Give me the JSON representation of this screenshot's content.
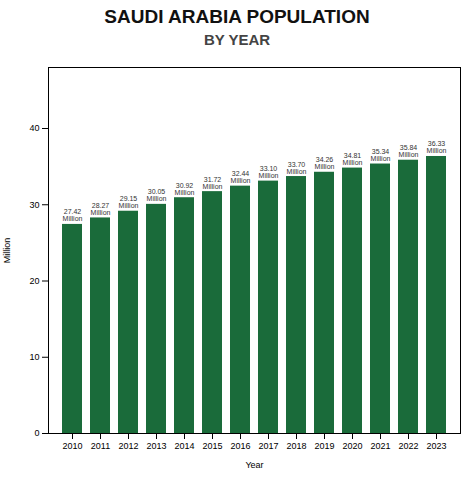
{
  "chart_data": {
    "type": "bar",
    "title": "SAUDI ARABIA POPULATION",
    "subtitle": "BY YEAR",
    "categories": [
      "2010",
      "2011",
      "2012",
      "2013",
      "2014",
      "2015",
      "2016",
      "2017",
      "2018",
      "2019",
      "2020",
      "2021",
      "2022",
      "2023"
    ],
    "values": [
      27.42,
      28.27,
      29.15,
      30.05,
      30.92,
      31.72,
      32.44,
      33.1,
      33.7,
      34.26,
      34.81,
      35.34,
      35.84,
      36.33
    ],
    "value_labels": [
      "27.42\nMillion",
      "28.27\nMillion",
      "29.15\nMillion",
      "30.05\nMillion",
      "30.92\nMillion",
      "31.72\nMillion",
      "32.44\nMillion",
      "33.10\nMillion",
      "33.70\nMillion",
      "34.26\nMillion",
      "34.81\nMillion",
      "35.34\nMillion",
      "35.84\nMillion",
      "36.33\nMillion"
    ],
    "data_labels": true,
    "color": "#1a6b3a",
    "xlabel": "Year",
    "ylabel": "Million",
    "ylim": [
      0,
      48
    ],
    "yticks": [
      0,
      10,
      20,
      30,
      40
    ],
    "grid": false
  }
}
